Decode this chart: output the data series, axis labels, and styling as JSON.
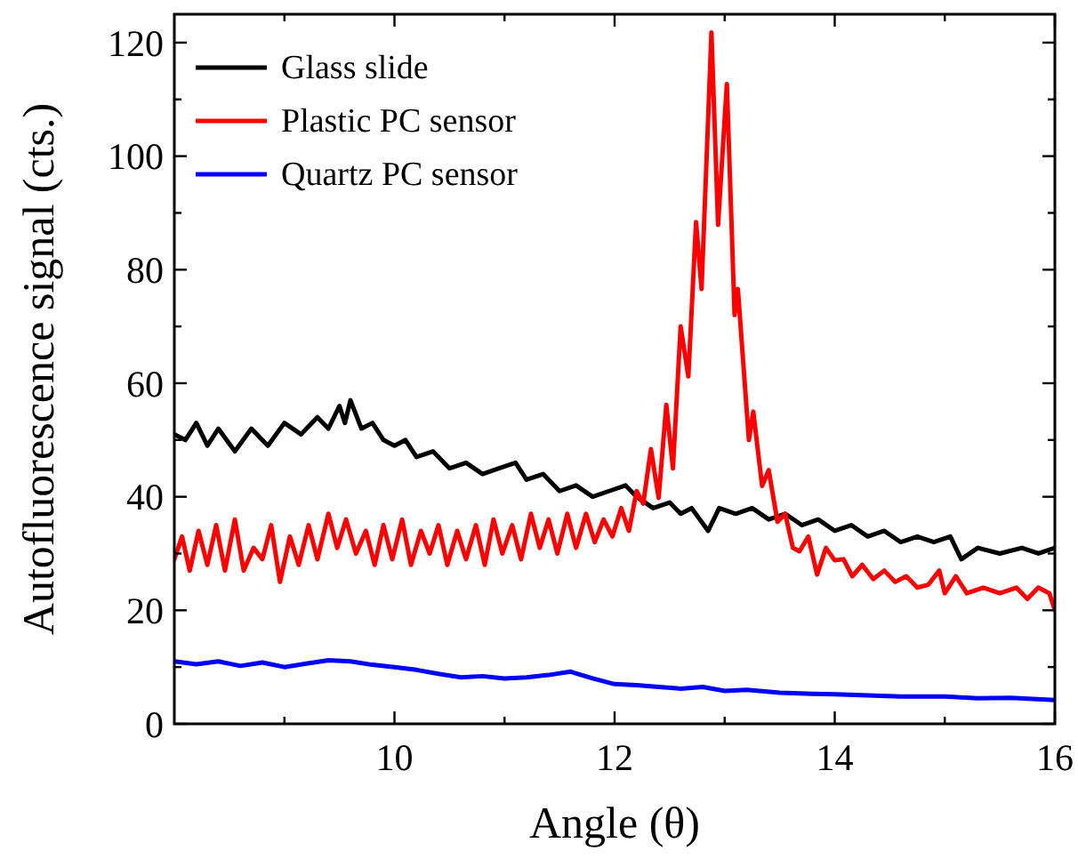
{
  "chart_data": {
    "type": "line",
    "xlabel": "Angle (θ)",
    "ylabel": "Autofluorescence signal (cts.)",
    "xlim": [
      8,
      16
    ],
    "ylim": [
      0,
      125
    ],
    "xticks": [
      {
        "value": 9,
        "label": null
      },
      10,
      {
        "value": 11,
        "label": null
      },
      12,
      {
        "value": 13,
        "label": null
      },
      14,
      {
        "value": 15,
        "label": null
      },
      16
    ],
    "yticks": [
      0,
      {
        "value": 10,
        "label": null
      },
      20,
      {
        "value": 30,
        "label": null
      },
      40,
      {
        "value": 50,
        "label": null
      },
      60,
      {
        "value": 70,
        "label": null
      },
      80,
      {
        "value": 90,
        "label": null
      },
      100,
      {
        "value": 110,
        "label": null
      },
      120
    ],
    "grid": false,
    "legend": "top left",
    "marker": "none",
    "line_style": "solid",
    "series": [
      {
        "name": "Glass slide",
        "color": "#000000",
        "x": [
          8.0,
          8.1,
          8.2,
          8.3,
          8.4,
          8.55,
          8.7,
          8.85,
          9.0,
          9.15,
          9.3,
          9.4,
          9.5,
          9.55,
          9.6,
          9.7,
          9.8,
          9.9,
          10.0,
          10.1,
          10.2,
          10.35,
          10.5,
          10.65,
          10.8,
          10.95,
          11.1,
          11.2,
          11.35,
          11.5,
          11.65,
          11.8,
          11.95,
          12.1,
          12.2,
          12.35,
          12.5,
          12.6,
          12.7,
          12.85,
          12.95,
          13.1,
          13.25,
          13.4,
          13.55,
          13.7,
          13.85,
          14.0,
          14.15,
          14.3,
          14.45,
          14.6,
          14.75,
          14.9,
          15.05,
          15.15,
          15.3,
          15.5,
          15.7,
          15.85,
          16.0
        ],
        "values": [
          51,
          50,
          53,
          49,
          52,
          48,
          52,
          49,
          53,
          51,
          54,
          52,
          56,
          53,
          57,
          52,
          53,
          50,
          49,
          50,
          47,
          48,
          45,
          46,
          44,
          45,
          46,
          43,
          44,
          41,
          42,
          40,
          41,
          42,
          40,
          38,
          39,
          37,
          38,
          34,
          38,
          37,
          38,
          36,
          37,
          35,
          36,
          34,
          35,
          33,
          34,
          32,
          33,
          32,
          33,
          29,
          31,
          30,
          31,
          30,
          31
        ]
      },
      {
        "name": "Plastic PC sensor",
        "color": "#ff0000",
        "x": [
          8.0,
          8.07,
          8.14,
          8.22,
          8.3,
          8.38,
          8.46,
          8.55,
          8.63,
          8.72,
          8.8,
          8.88,
          8.96,
          9.05,
          9.13,
          9.22,
          9.3,
          9.4,
          9.48,
          9.56,
          9.65,
          9.74,
          9.82,
          9.9,
          9.98,
          10.07,
          10.15,
          10.24,
          10.32,
          10.4,
          10.48,
          10.57,
          10.65,
          10.74,
          10.82,
          10.9,
          10.98,
          11.07,
          11.15,
          11.24,
          11.32,
          11.4,
          11.48,
          11.57,
          11.65,
          11.74,
          11.82,
          11.9,
          11.98,
          12.06,
          12.13,
          12.2,
          12.26,
          12.33,
          12.4,
          12.47,
          12.53,
          12.6,
          12.67,
          12.74,
          12.79,
          12.88,
          12.94,
          13.02,
          13.09,
          13.12,
          13.22,
          13.26,
          13.34,
          13.4,
          13.48,
          13.55,
          13.62,
          13.68,
          13.76,
          13.84,
          13.92,
          14.0,
          14.08,
          14.16,
          14.25,
          14.35,
          14.45,
          14.55,
          14.65,
          14.75,
          14.85,
          14.95,
          15.0,
          15.1,
          15.2,
          15.35,
          15.5,
          15.65,
          15.75,
          15.85,
          15.95,
          16.0
        ],
        "values": [
          29,
          33,
          27,
          34,
          28,
          35,
          27,
          36,
          27,
          31,
          29,
          35,
          25,
          33,
          28,
          35,
          29,
          37,
          31,
          36,
          30,
          34,
          28,
          35,
          29,
          36,
          28,
          34,
          30,
          35,
          28,
          34,
          29,
          35,
          28,
          36,
          30,
          35,
          29,
          37,
          31,
          36,
          30,
          37,
          31,
          37,
          32,
          36,
          33,
          38,
          34,
          41,
          38.8,
          48.4,
          39.8,
          56.2,
          45,
          70,
          61.2,
          88.4,
          76.6,
          121.8,
          87.9,
          112.7,
          72,
          76.6,
          50,
          55,
          41.9,
          44.7,
          35.6,
          37,
          31,
          30.4,
          33,
          26.3,
          31,
          28.8,
          29,
          26,
          28,
          25.5,
          27,
          25,
          26,
          24,
          24.5,
          27,
          23,
          26,
          23,
          24,
          23,
          24,
          22,
          24,
          23,
          20
        ]
      },
      {
        "name": "Quartz PC sensor",
        "color": "#0000ff",
        "x": [
          8.0,
          8.2,
          8.4,
          8.6,
          8.8,
          9.0,
          9.2,
          9.4,
          9.6,
          9.8,
          10.0,
          10.2,
          10.4,
          10.6,
          10.8,
          11.0,
          11.2,
          11.4,
          11.6,
          11.8,
          12.0,
          12.2,
          12.4,
          12.6,
          12.8,
          13.0,
          13.2,
          13.5,
          13.8,
          14.0,
          14.3,
          14.6,
          15.0,
          15.3,
          15.6,
          16.0
        ],
        "values": [
          11,
          10.5,
          11,
          10.2,
          10.8,
          10,
          10.6,
          11.2,
          11,
          10.4,
          10,
          9.5,
          8.8,
          8.2,
          8.4,
          8,
          8.2,
          8.6,
          9.2,
          8,
          7,
          6.8,
          6.5,
          6.2,
          6.5,
          5.8,
          6,
          5.5,
          5.3,
          5.2,
          5,
          4.8,
          4.8,
          4.5,
          4.6,
          4.2
        ]
      }
    ]
  }
}
